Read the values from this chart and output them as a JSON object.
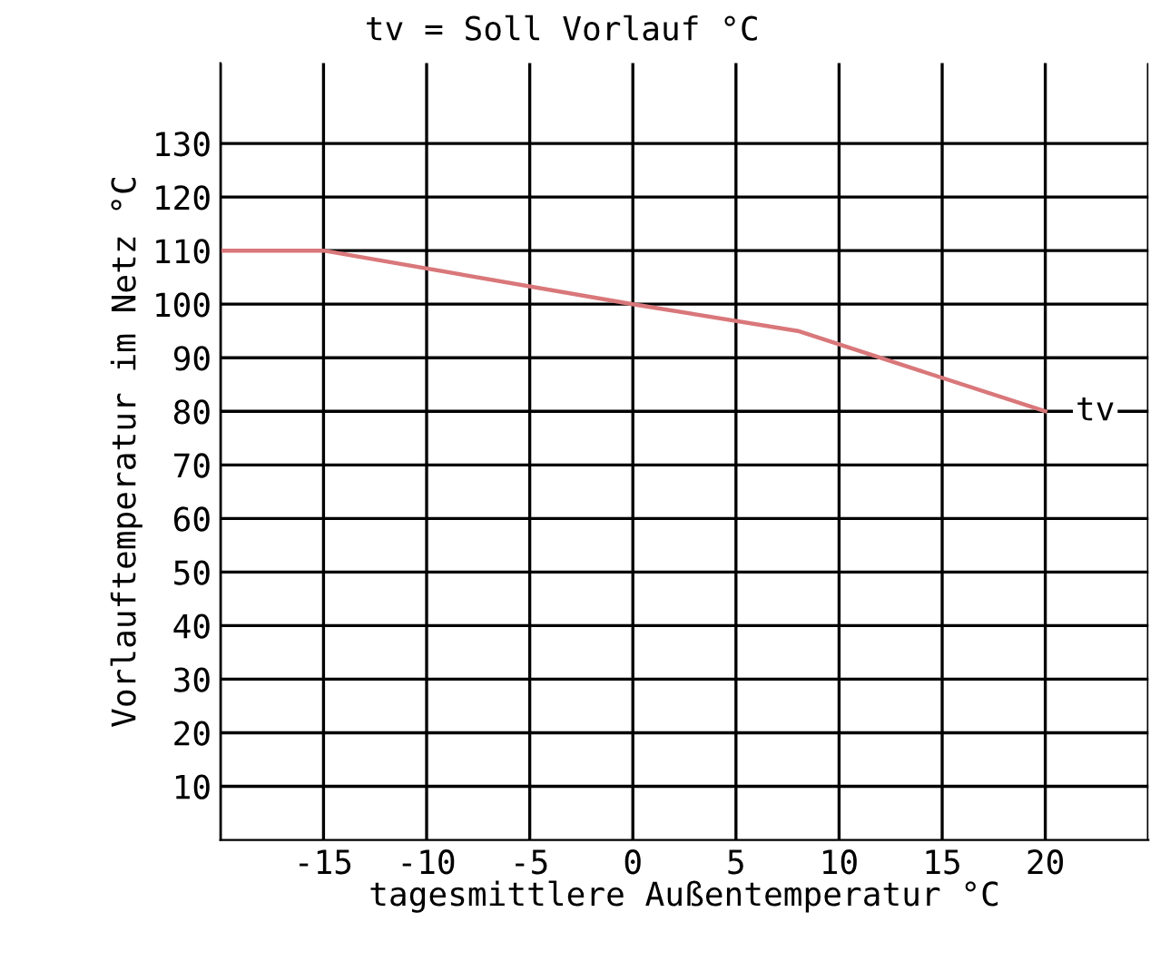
{
  "chart_data": {
    "type": "line",
    "title": "tv = Soll Vorlauf °C",
    "xlabel": "tagesmittlere Außentemperatur °C",
    "ylabel": "Vorlauftemperatur im Netz °C",
    "series": [
      {
        "name": "tv",
        "color": "#d9777a",
        "x": [
          -20,
          -15,
          0,
          8,
          20
        ],
        "values": [
          110,
          110,
          100,
          95,
          80
        ]
      }
    ],
    "xlim": [
      -20,
      25
    ],
    "xticks": [
      {
        "value": -20,
        "label": null
      },
      -15,
      -10,
      -5,
      0,
      5,
      10,
      15,
      20,
      {
        "value": 25,
        "label": null
      }
    ],
    "ylim": [
      0,
      145
    ],
    "yticks": [
      10,
      20,
      30,
      40,
      50,
      60,
      70,
      80,
      90,
      100,
      110,
      120,
      130
    ],
    "grid": true,
    "marker": "none",
    "line_style": "solid"
  }
}
